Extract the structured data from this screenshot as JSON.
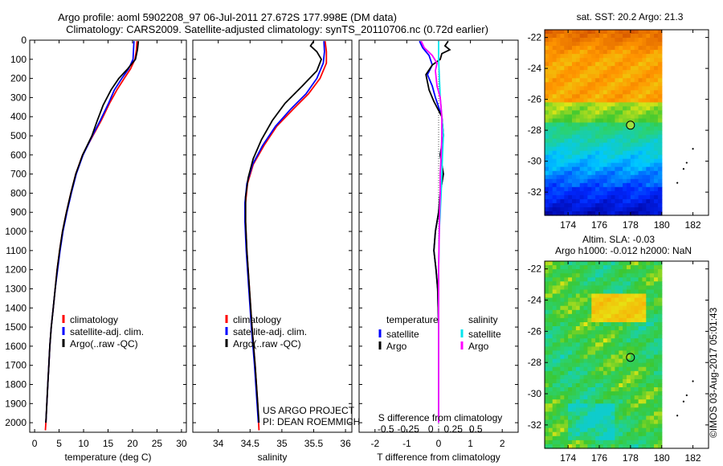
{
  "header": {
    "line1": "Argo profile: aoml 5902208_97 06-Jul-2011 27.672S 177.998E (DM data)",
    "line2": "Climatology: CARS2009. Satellite-adjusted climatology: synTS_20110706.nc (0.72d earlier)"
  },
  "credit": "©IMOS 03-Aug-2017 05:01:43",
  "project": {
    "line1": "US ARGO PROJECT",
    "line2": "PI: DEAN ROEMMICH"
  },
  "colors": {
    "climatology": "#ff0000",
    "satellite": "#0000ff",
    "argo": "#000000",
    "sal_satellite": "#00e5ee",
    "sal_argo": "#ff00ff"
  },
  "chart_data": [
    {
      "type": "line",
      "id": "temperature",
      "xlabel": "temperature (deg C)",
      "xlim": [
        -1,
        31
      ],
      "xticks": [
        0,
        5,
        10,
        15,
        20,
        25,
        30
      ],
      "ylim": [
        0,
        2050
      ],
      "yticks": [
        0,
        100,
        200,
        300,
        400,
        500,
        600,
        700,
        800,
        900,
        1000,
        1100,
        1200,
        1300,
        1400,
        1500,
        1600,
        1700,
        1800,
        1900,
        2000
      ],
      "legend": [
        "climatology",
        "satellite-adj. clim.",
        "Argo(..raw -QC)"
      ],
      "series": [
        {
          "name": "climatology",
          "color": "#ff0000",
          "points": [
            [
              20.9,
              5
            ],
            [
              20.8,
              50
            ],
            [
              20.5,
              100
            ],
            [
              19.6,
              150
            ],
            [
              18.3,
              200
            ],
            [
              16.8,
              260
            ],
            [
              15.3,
              330
            ],
            [
              13.6,
              420
            ],
            [
              11.9,
              500
            ],
            [
              9.8,
              600
            ],
            [
              8.4,
              700
            ],
            [
              7.4,
              800
            ],
            [
              6.5,
              900
            ],
            [
              5.7,
              1000
            ],
            [
              5.1,
              1100
            ],
            [
              4.6,
              1200
            ],
            [
              4.2,
              1300
            ],
            [
              3.8,
              1400
            ],
            [
              3.4,
              1500
            ],
            [
              3.1,
              1600
            ],
            [
              2.9,
              1700
            ],
            [
              2.7,
              1800
            ],
            [
              2.5,
              1900
            ],
            [
              2.3,
              2000
            ],
            [
              2.2,
              2040
            ]
          ]
        },
        {
          "name": "satellite-adj. clim.",
          "color": "#0000ff",
          "points": [
            [
              20.3,
              5
            ],
            [
              20.2,
              50
            ],
            [
              20.1,
              100
            ],
            [
              19.2,
              150
            ],
            [
              17.8,
              200
            ],
            [
              16.3,
              260
            ],
            [
              15.1,
              330
            ],
            [
              13.4,
              420
            ],
            [
              11.8,
              500
            ],
            [
              9.9,
              600
            ],
            [
              8.5,
              700
            ],
            [
              7.5,
              800
            ],
            [
              6.6,
              900
            ],
            [
              5.8,
              1000
            ],
            [
              5.2,
              1100
            ],
            [
              4.7,
              1200
            ],
            [
              4.2,
              1300
            ],
            [
              3.8,
              1400
            ],
            [
              3.4,
              1500
            ],
            [
              3.1,
              1600
            ],
            [
              2.9,
              1700
            ],
            [
              2.7,
              1800
            ],
            [
              2.5,
              1900
            ],
            [
              2.3,
              2000
            ]
          ]
        },
        {
          "name": "Argo(..raw -QC)",
          "color": "#000000",
          "points": [
            [
              21.2,
              5
            ],
            [
              21.0,
              50
            ],
            [
              20.6,
              100
            ],
            [
              19.0,
              150
            ],
            [
              17.2,
              200
            ],
            [
              15.6,
              260
            ],
            [
              14.0,
              340
            ],
            [
              12.8,
              420
            ],
            [
              11.7,
              500
            ],
            [
              9.8,
              600
            ],
            [
              8.4,
              700
            ],
            [
              7.4,
              800
            ],
            [
              6.5,
              900
            ],
            [
              5.7,
              1000
            ],
            [
              5.1,
              1100
            ],
            [
              4.6,
              1200
            ],
            [
              4.2,
              1300
            ],
            [
              3.8,
              1400
            ],
            [
              3.4,
              1500
            ],
            [
              3.1,
              1600
            ],
            [
              2.9,
              1700
            ],
            [
              2.7,
              1800
            ],
            [
              2.5,
              1900
            ],
            [
              2.3,
              2000
            ]
          ]
        }
      ]
    },
    {
      "type": "line",
      "id": "salinity",
      "xlabel": "salinity",
      "xlim": [
        33.6,
        36.1
      ],
      "xticks": [
        34,
        34.5,
        35,
        35.5,
        36
      ],
      "ylim": [
        0,
        2050
      ],
      "legend": [
        "climatology",
        "satellite-adj. clim.",
        "Argo(..raw -QC)"
      ],
      "series": [
        {
          "name": "climatology",
          "color": "#ff0000",
          "points": [
            [
              35.68,
              5
            ],
            [
              35.7,
              60
            ],
            [
              35.7,
              120
            ],
            [
              35.6,
              200
            ],
            [
              35.42,
              280
            ],
            [
              35.18,
              360
            ],
            [
              34.92,
              450
            ],
            [
              34.72,
              550
            ],
            [
              34.55,
              650
            ],
            [
              34.46,
              750
            ],
            [
              34.43,
              850
            ],
            [
              34.43,
              950
            ],
            [
              34.45,
              1100
            ],
            [
              34.49,
              1300
            ],
            [
              34.53,
              1500
            ],
            [
              34.58,
              1700
            ],
            [
              34.62,
              1900
            ],
            [
              34.64,
              2040
            ]
          ]
        },
        {
          "name": "satellite-adj. clim.",
          "color": "#0000ff",
          "points": [
            [
              35.66,
              5
            ],
            [
              35.67,
              60
            ],
            [
              35.65,
              120
            ],
            [
              35.55,
              200
            ],
            [
              35.38,
              280
            ],
            [
              35.14,
              360
            ],
            [
              34.9,
              450
            ],
            [
              34.7,
              550
            ],
            [
              34.54,
              650
            ],
            [
              34.45,
              750
            ],
            [
              34.42,
              850
            ],
            [
              34.42,
              950
            ],
            [
              34.44,
              1100
            ],
            [
              34.48,
              1300
            ],
            [
              34.52,
              1500
            ],
            [
              34.57,
              1700
            ],
            [
              34.61,
              1900
            ],
            [
              34.63,
              2000
            ]
          ]
        },
        {
          "name": "Argo(..raw -QC)",
          "color": "#000000",
          "points": [
            [
              35.5,
              5
            ],
            [
              35.45,
              30
            ],
            [
              35.55,
              60
            ],
            [
              35.62,
              100
            ],
            [
              35.55,
              160
            ],
            [
              35.32,
              240
            ],
            [
              35.05,
              330
            ],
            [
              34.85,
              420
            ],
            [
              34.68,
              520
            ],
            [
              34.55,
              620
            ],
            [
              34.47,
              720
            ],
            [
              34.43,
              820
            ],
            [
              34.43,
              950
            ],
            [
              34.45,
              1100
            ],
            [
              34.49,
              1300
            ],
            [
              34.53,
              1500
            ],
            [
              34.58,
              1700
            ],
            [
              34.62,
              1900
            ],
            [
              34.64,
              2000
            ]
          ]
        }
      ]
    },
    {
      "type": "line",
      "id": "difference",
      "xlabel": "T difference from climatology",
      "xlim": [
        -2.5,
        2.5
      ],
      "xticks": [
        -2,
        -1,
        0,
        1,
        2
      ],
      "top_label": "S difference from climatology",
      "top_ticks": [
        "-0.5",
        "-0.25",
        "0",
        "0.25",
        "0.5"
      ],
      "top_tick_values": [
        -0.5,
        -0.25,
        0,
        0.25,
        0.5
      ],
      "ylim": [
        0,
        2050
      ],
      "legend_headers": [
        "temperature",
        "salinity"
      ],
      "legend": [
        "satellite",
        "Argo",
        "satellite",
        "Argo"
      ],
      "series": [
        {
          "name": "T satellite",
          "color": "#0000ff",
          "points": [
            [
              -0.6,
              5
            ],
            [
              -0.5,
              40
            ],
            [
              -0.3,
              80
            ],
            [
              -0.2,
              130
            ],
            [
              -0.35,
              180
            ],
            [
              -0.2,
              240
            ],
            [
              -0.1,
              300
            ],
            [
              0.1,
              400
            ],
            [
              0.15,
              500
            ],
            [
              0.05,
              600
            ],
            [
              0.15,
              700
            ],
            [
              0.05,
              800
            ],
            [
              0.0,
              900
            ],
            [
              -0.1,
              1000
            ],
            [
              -0.15,
              1100
            ],
            [
              -0.08,
              1200
            ],
            [
              -0.03,
              1300
            ],
            [
              0.0,
              1500
            ],
            [
              0.0,
              1700
            ],
            [
              0.0,
              2000
            ]
          ]
        },
        {
          "name": "T Argo",
          "color": "#000000",
          "points": [
            [
              0.3,
              5
            ],
            [
              0.2,
              30
            ],
            [
              0.35,
              50
            ],
            [
              0.1,
              70
            ],
            [
              0.05,
              100
            ],
            [
              -0.2,
              130
            ],
            [
              -0.4,
              180
            ],
            [
              -0.3,
              260
            ],
            [
              -0.15,
              320
            ],
            [
              0.1,
              400
            ],
            [
              0.15,
              500
            ],
            [
              0.05,
              600
            ],
            [
              0.15,
              700
            ],
            [
              0.05,
              800
            ],
            [
              0.0,
              900
            ],
            [
              -0.1,
              1000
            ],
            [
              -0.15,
              1100
            ],
            [
              -0.08,
              1200
            ],
            [
              -0.03,
              1300
            ],
            [
              0.0,
              1500
            ],
            [
              0.0,
              1700
            ],
            [
              0.0,
              2000
            ]
          ]
        },
        {
          "name": "S satellite",
          "color": "#00e5ee",
          "points": [
            [
              0.0,
              5
            ],
            [
              0.0,
              100
            ],
            [
              0.05,
              300
            ],
            [
              0.1,
              400
            ],
            [
              0.15,
              500
            ],
            [
              0.12,
              600
            ],
            [
              0.1,
              700
            ],
            [
              0.08,
              800
            ],
            [
              0.05,
              900
            ],
            [
              0.02,
              1000
            ],
            [
              0.0,
              1200
            ],
            [
              0.0,
              1500
            ],
            [
              0.0,
              2000
            ]
          ]
        },
        {
          "name": "S Argo",
          "color": "#ff00ff",
          "points": [
            [
              -0.55,
              5
            ],
            [
              -0.45,
              40
            ],
            [
              -0.2,
              80
            ],
            [
              -0.05,
              120
            ],
            [
              -0.1,
              160
            ],
            [
              -0.05,
              240
            ],
            [
              0.05,
              300
            ],
            [
              0.1,
              400
            ],
            [
              0.1,
              500
            ],
            [
              0.08,
              600
            ],
            [
              0.05,
              700
            ],
            [
              0.05,
              800
            ],
            [
              0.03,
              900
            ],
            [
              0.02,
              1000
            ],
            [
              0.0,
              1200
            ],
            [
              0.0,
              1500
            ],
            [
              0.0,
              2000
            ]
          ]
        }
      ]
    },
    {
      "type": "heatmap",
      "id": "sst-map",
      "title": "sat. SST: 20.2  Argo: 21.3",
      "xlim": [
        172.5,
        183
      ],
      "ylim": [
        -33.5,
        -21.5
      ],
      "xticks": [
        174,
        176,
        178,
        180,
        182
      ],
      "yticks": [
        -22,
        -24,
        -26,
        -28,
        -30,
        -32
      ],
      "data_extent_lon": [
        172.5,
        180
      ],
      "argo_position": [
        177.998,
        -27.672
      ],
      "islands": [
        [
          181.0,
          -31.4
        ],
        [
          181.4,
          -30.5
        ],
        [
          181.6,
          -30.1
        ],
        [
          182.0,
          -29.2
        ]
      ]
    },
    {
      "type": "heatmap",
      "id": "sla-map",
      "title": "Altim. SLA: -0.03",
      "subtitle": "Argo h1000: -0.012 h2000: NaN",
      "xlim": [
        172.5,
        183
      ],
      "ylim": [
        -33.5,
        -21.5
      ],
      "xticks": [
        174,
        176,
        178,
        180,
        182
      ],
      "yticks": [
        -22,
        -24,
        -26,
        -28,
        -30,
        -32
      ],
      "data_extent_lon": [
        172.5,
        180
      ],
      "argo_position": [
        177.998,
        -27.672
      ],
      "islands": [
        [
          181.0,
          -31.4
        ],
        [
          181.4,
          -30.5
        ],
        [
          181.6,
          -30.1
        ],
        [
          182.0,
          -29.2
        ]
      ]
    }
  ]
}
